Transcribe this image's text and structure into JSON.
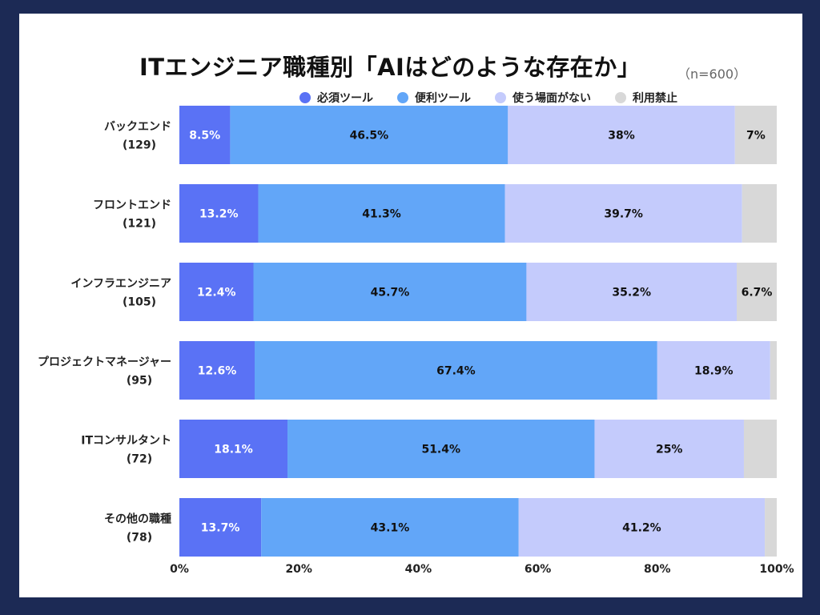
{
  "title": "ITエンジニア職種別「AIはどのような存在か」",
  "sample_note": "（n=600）",
  "colors": {
    "background": "#1c2a55",
    "series": [
      "#5a72f5",
      "#62a6f8",
      "#c4cbfc",
      "#d8d8d8"
    ]
  },
  "chart_data": {
    "type": "bar",
    "orientation": "horizontal",
    "stacked": true,
    "title": "ITエンジニア職種別「AIはどのような存在か」",
    "categories": [
      {
        "label": "バックエンド",
        "count": "(129)"
      },
      {
        "label": "フロントエンド",
        "count": "(121)"
      },
      {
        "label": "インフラエンジニア",
        "count": "(105)"
      },
      {
        "label": "プロジェクトマネージャー",
        "count": "(95)"
      },
      {
        "label": "ITコンサルタント",
        "count": "(72)"
      },
      {
        "label": "その他の職種",
        "count": "(78)"
      }
    ],
    "series": [
      {
        "name": "必須ツール",
        "values": [
          8.5,
          13.2,
          12.4,
          12.6,
          18.1,
          13.7
        ],
        "labels": [
          "8.5%",
          "13.2%",
          "12.4%",
          "12.6%",
          "18.1%",
          "13.7%"
        ]
      },
      {
        "name": "便利ツール",
        "values": [
          46.5,
          41.3,
          45.7,
          67.4,
          51.4,
          43.1
        ],
        "labels": [
          "46.5%",
          "41.3%",
          "45.7%",
          "67.4%",
          "51.4%",
          "43.1%"
        ]
      },
      {
        "name": "使う場面がない",
        "values": [
          38,
          39.7,
          35.2,
          18.9,
          25,
          41.2
        ],
        "labels": [
          "38%",
          "39.7%",
          "35.2%",
          "18.9%",
          "25%",
          "41.2%"
        ]
      },
      {
        "name": "利用禁止",
        "values": [
          7,
          5.8,
          6.7,
          1.1,
          5.5,
          2.0
        ],
        "labels": [
          "7%",
          "",
          "6.7%",
          "",
          "",
          ""
        ]
      }
    ],
    "xlim": [
      0,
      100
    ],
    "xticks": [
      "0%",
      "20%",
      "40%",
      "60%",
      "80%",
      "100%"
    ],
    "legend_position": "top"
  }
}
